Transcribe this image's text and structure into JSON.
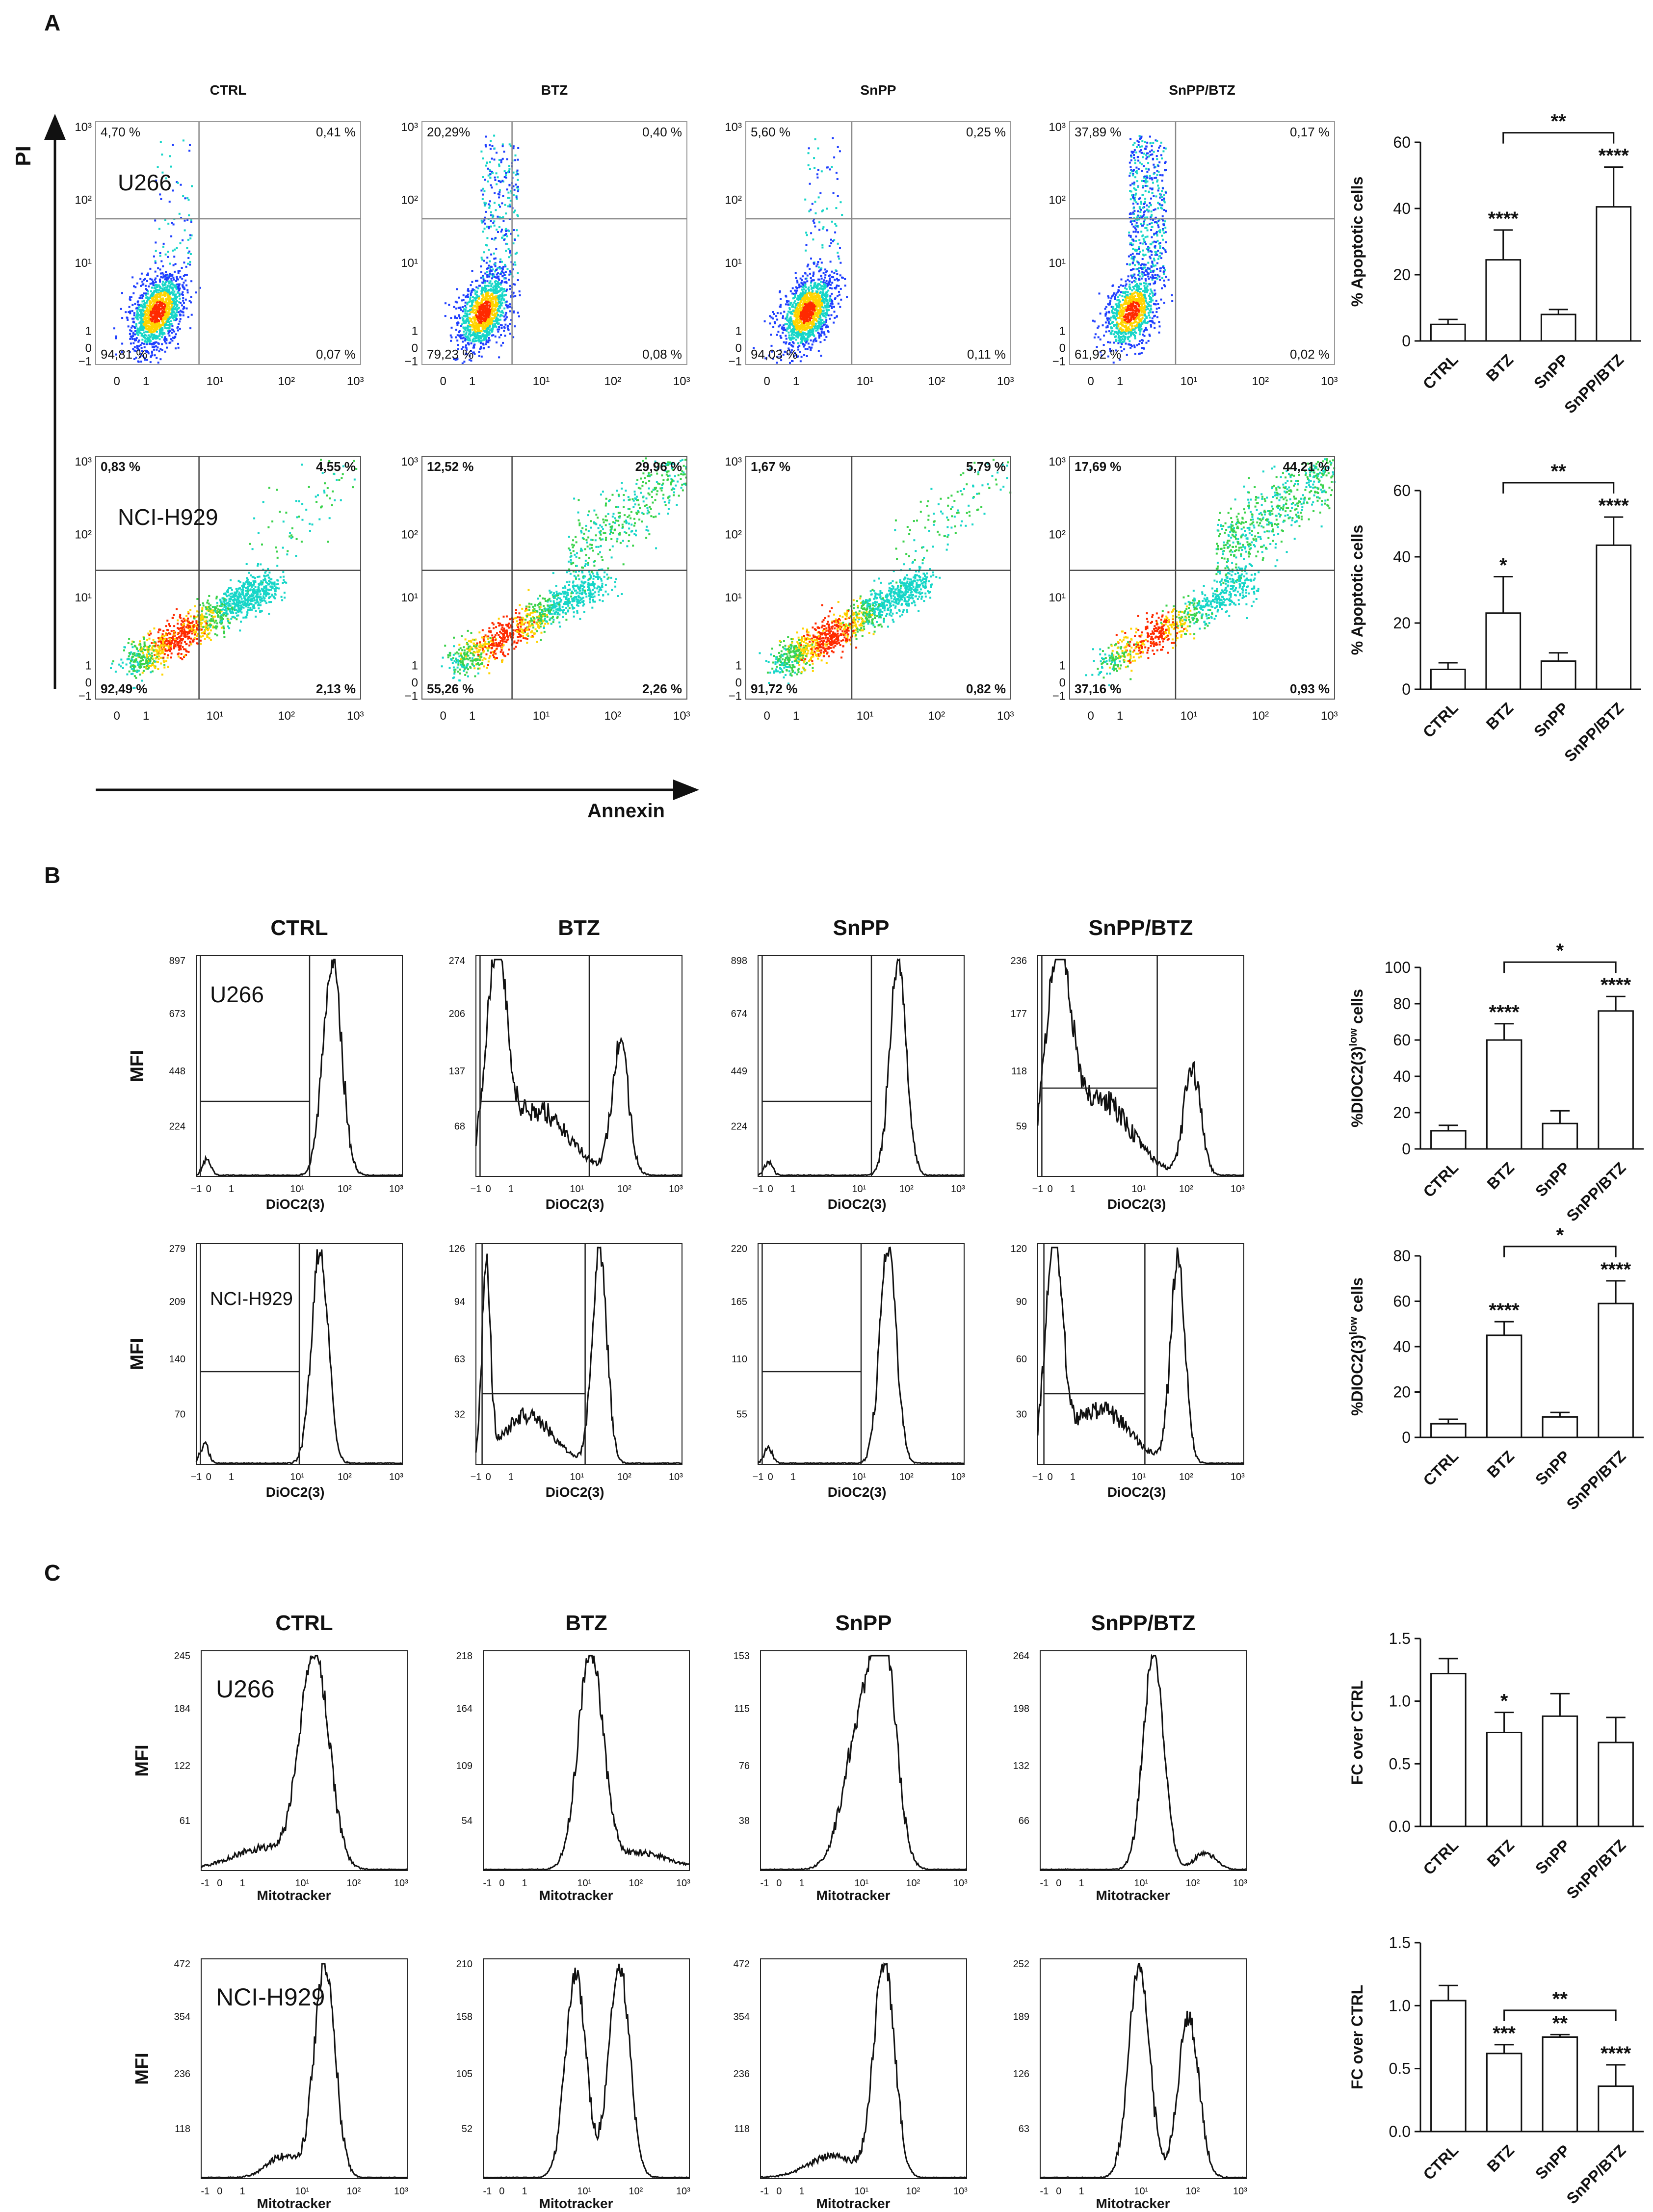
{
  "panel_labels": [
    "A",
    "B",
    "C"
  ],
  "conditions": [
    "CTRL",
    "BTZ",
    "SnPP",
    "SnPP/BTZ"
  ],
  "cell_lines": [
    "U266",
    "NCI-H929"
  ],
  "colors": {
    "ink": "#111111",
    "dot_cold": "#1f3fff",
    "dot_mid": "#17d6c8",
    "dot_warm": "#ffd400",
    "dot_hot": "#ff2a00",
    "dot_green": "#3ad24a",
    "bar_fill": "#ffffff"
  },
  "panelA": {
    "y_axis_title": "PI",
    "x_axis_title": "Annexin",
    "axis_ticks": [
      "−1",
      "0",
      "1",
      "10¹",
      "10²",
      "10³"
    ],
    "x_ticks": [
      "0",
      "1",
      "10¹",
      "10²",
      "10³"
    ],
    "rows": [
      {
        "cell_line": "U266",
        "plots": [
          {
            "title": "CTRL",
            "ul": "4,70 %",
            "ur": "0,41 %",
            "ll": "94,81 %",
            "lr": "0,07 %"
          },
          {
            "title": "BTZ",
            "ul": "20,29%",
            "ur": "0,40 %",
            "ll": "79,23 %",
            "lr": "0,08 %"
          },
          {
            "title": "SnPP",
            "ul": "5,60 %",
            "ur": "0,25 %",
            "ll": "94,03 %",
            "lr": "0,11 %"
          },
          {
            "title": "SnPP/BTZ",
            "ul": "37,89 %",
            "ur": "0,17 %",
            "ll": "61,92 %",
            "lr": "0,02 %"
          }
        ]
      },
      {
        "cell_line": "NCI-H929",
        "plots": [
          {
            "title": "",
            "ul": "0,83 %",
            "ur": "4,55 %",
            "ll": "92,49 %",
            "lr": "2,13 %"
          },
          {
            "title": "",
            "ul": "12,52 %",
            "ur": "29,96 %",
            "ll": "55,26 %",
            "lr": "2,26 %"
          },
          {
            "title": "",
            "ul": "1,67 %",
            "ur": "5,79 %",
            "ll": "91,72 %",
            "lr": "0,82 %"
          },
          {
            "title": "",
            "ul": "17,69 %",
            "ur": "44,21 %",
            "ll": "37,16 %",
            "lr": "0,93 %"
          }
        ]
      }
    ]
  },
  "panelB": {
    "y_axis_title": "MFI",
    "x_axis_title": "DiOC2(3)",
    "x_ticks": [
      "−1",
      "0",
      "1",
      "10¹",
      "10²",
      "10³"
    ],
    "rows": [
      {
        "cell_line": "U266",
        "titles": [
          "CTRL",
          "BTZ",
          "SnPP",
          "SnPP/BTZ"
        ],
        "y_ticks": [
          [
            "897",
            "673",
            "448",
            "224"
          ],
          [
            "274",
            "206",
            "137",
            "68"
          ],
          [
            "898",
            "674",
            "449",
            "224"
          ],
          [
            "236",
            "177",
            "118",
            "59"
          ]
        ]
      },
      {
        "cell_line": "NCI-H929",
        "titles": [
          "",
          "",
          "",
          ""
        ],
        "y_ticks": [
          [
            "279",
            "209",
            "140",
            "70"
          ],
          [
            "126",
            "94",
            "63",
            "32"
          ],
          [
            "220",
            "165",
            "110",
            "55"
          ],
          [
            "120",
            "90",
            "60",
            "30"
          ]
        ]
      }
    ]
  },
  "panelC": {
    "y_axis_title": "MFI",
    "x_axis_title": "Mitotracker",
    "x_ticks": [
      "-1",
      "0",
      "1",
      "10¹",
      "10²",
      "10³"
    ],
    "rows": [
      {
        "cell_line": "U266",
        "titles": [
          "CTRL",
          "BTZ",
          "SnPP",
          "SnPP/BTZ"
        ],
        "y_ticks": [
          [
            "245",
            "184",
            "122",
            "61"
          ],
          [
            "218",
            "164",
            "109",
            "54"
          ],
          [
            "153",
            "115",
            "76",
            "38"
          ],
          [
            "264",
            "198",
            "132",
            "66"
          ]
        ]
      },
      {
        "cell_line": "NCI-H929",
        "titles": [
          "",
          "",
          "",
          ""
        ],
        "y_ticks": [
          [
            "472",
            "354",
            "236",
            "118"
          ],
          [
            "210",
            "158",
            "105",
            "52"
          ],
          [
            "472",
            "354",
            "236",
            "118"
          ],
          [
            "252",
            "189",
            "126",
            "63"
          ]
        ]
      }
    ]
  },
  "chart_data": [
    {
      "type": "bar",
      "panel": "A",
      "cell_line": "U266",
      "title": "",
      "xlabel": "",
      "ylabel": "% Apoptotic cells",
      "categories": [
        "CTRL",
        "BTZ",
        "SnPP",
        "SnPP/BTZ"
      ],
      "values": [
        5,
        24.5,
        8,
        40.5
      ],
      "errors": [
        1.5,
        9,
        1.5,
        12
      ],
      "ylim": [
        0,
        60
      ],
      "yticks": [
        "0",
        "20",
        "40",
        "60"
      ],
      "significance": [
        "",
        "****",
        "",
        "****"
      ],
      "bracket": {
        "from": 1,
        "to": 3,
        "label": "**"
      }
    },
    {
      "type": "bar",
      "panel": "A",
      "cell_line": "NCI-H929",
      "title": "",
      "xlabel": "",
      "ylabel": "% Apoptotic cells",
      "categories": [
        "CTRL",
        "BTZ",
        "SnPP",
        "SnPP/BTZ"
      ],
      "values": [
        6,
        23,
        8.5,
        43.5
      ],
      "errors": [
        2,
        11,
        2.5,
        8.5
      ],
      "ylim": [
        0,
        60
      ],
      "yticks": [
        "0",
        "20",
        "40",
        "60"
      ],
      "significance": [
        "",
        "*",
        "",
        "****"
      ],
      "bracket": {
        "from": 1,
        "to": 3,
        "label": "**"
      }
    },
    {
      "type": "bar",
      "panel": "B",
      "cell_line": "U266",
      "title": "",
      "xlabel": "",
      "ylabel": "%DIOC2(3)",
      "ylabel_sup": "low",
      "ylabel_tail": " cells",
      "categories": [
        "CTRL",
        "BTZ",
        "SnPP",
        "SnPP/BTZ"
      ],
      "values": [
        10,
        60,
        14,
        76
      ],
      "errors": [
        3,
        9,
        7,
        8
      ],
      "ylim": [
        0,
        100
      ],
      "yticks": [
        "0",
        "20",
        "40",
        "60",
        "80",
        "100"
      ],
      "significance": [
        "",
        "****",
        "",
        "****"
      ],
      "bracket": {
        "from": 1,
        "to": 3,
        "label": "*"
      }
    },
    {
      "type": "bar",
      "panel": "B",
      "cell_line": "NCI-H929",
      "title": "",
      "xlabel": "",
      "ylabel": "%DIOC2(3)",
      "ylabel_sup": "low",
      "ylabel_tail": " cells",
      "categories": [
        "CTRL",
        "BTZ",
        "SnPP",
        "SnPP/BTZ"
      ],
      "values": [
        6,
        45,
        9,
        59
      ],
      "errors": [
        2,
        6,
        2,
        10
      ],
      "ylim": [
        0,
        80
      ],
      "yticks": [
        "0",
        "20",
        "40",
        "60",
        "80"
      ],
      "significance": [
        "",
        "****",
        "",
        "****"
      ],
      "bracket": {
        "from": 1,
        "to": 3,
        "label": "*"
      }
    },
    {
      "type": "bar",
      "panel": "C",
      "cell_line": "U266",
      "title": "",
      "xlabel": "",
      "ylabel": "FC over CTRL",
      "categories": [
        "CTRL",
        "BTZ",
        "SnPP",
        "SnPP/BTZ"
      ],
      "values": [
        1.22,
        0.75,
        0.88,
        0.67
      ],
      "errors": [
        0.12,
        0.16,
        0.18,
        0.2
      ],
      "ylim": [
        0,
        1.5
      ],
      "yticks": [
        "0.0",
        "0.5",
        "1.0",
        "1.5"
      ],
      "significance": [
        "",
        "*",
        "",
        ""
      ],
      "bracket": null
    },
    {
      "type": "bar",
      "panel": "C",
      "cell_line": "NCI-H929",
      "title": "",
      "xlabel": "",
      "ylabel": "FC over CTRL",
      "categories": [
        "CTRL",
        "BTZ",
        "SnPP",
        "SnPP/BTZ"
      ],
      "values": [
        1.04,
        0.62,
        0.75,
        0.36
      ],
      "errors": [
        0.12,
        0.07,
        0.02,
        0.17
      ],
      "ylim": [
        0,
        1.5
      ],
      "yticks": [
        "0.0",
        "0.5",
        "1.0",
        "1.5"
      ],
      "significance": [
        "",
        "***",
        "**",
        "****"
      ],
      "bracket": {
        "from": 1,
        "to": 3,
        "label": "**"
      }
    }
  ]
}
